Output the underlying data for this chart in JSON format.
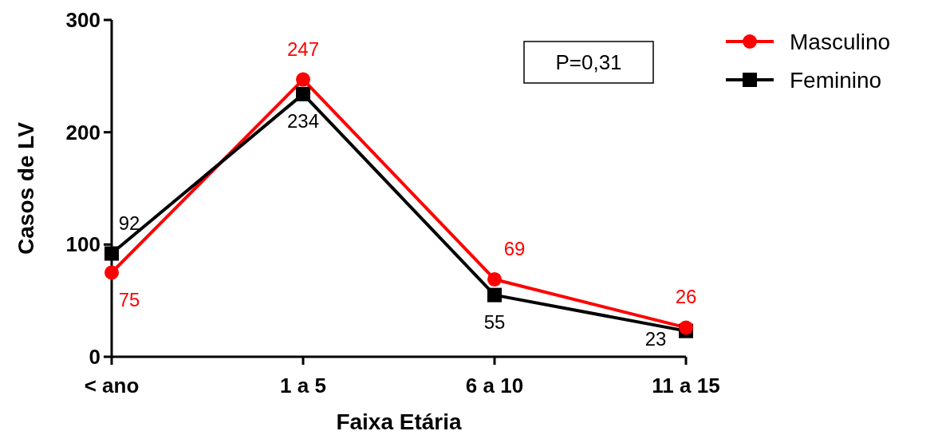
{
  "chart_data": {
    "type": "line",
    "xlabel": "Faixa Etária",
    "ylabel": "Casos de LV",
    "categories": [
      "< ano",
      "1 a 5",
      "6 a 10",
      "11 a 15"
    ],
    "series": [
      {
        "name": "Masculino",
        "color": "#ff0000",
        "marker": "circle",
        "values": [
          75,
          247,
          69,
          26
        ]
      },
      {
        "name": "Feminino",
        "color": "#000000",
        "marker": "square",
        "values": [
          92,
          234,
          55,
          23
        ]
      }
    ],
    "ylim": [
      0,
      300
    ],
    "yticks": [
      0,
      100,
      200,
      300
    ],
    "grid": false,
    "legend": "top right",
    "data_labels": true,
    "annotations": [
      "P=0,31"
    ]
  }
}
